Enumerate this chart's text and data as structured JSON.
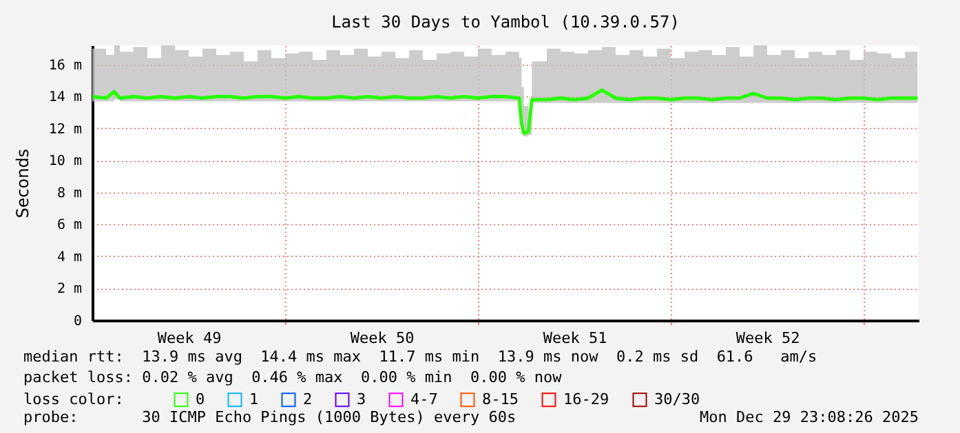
{
  "chart_data": {
    "type": "line",
    "title": "Last 30 Days to Yambol (10.39.0.57)",
    "ylabel": "Seconds",
    "legend_title": "loss color:",
    "legend": "bottom",
    "grid": true,
    "marker": "none",
    "line_style": "solid",
    "xlim": [
      "2025-11-30T00:00",
      "2025-12-30T00:00"
    ],
    "xticks": [
      {
        "value": "2025-12-03T12:00",
        "label": "Week 49"
      },
      {
        "value": "2025-12-10T12:00",
        "label": "Week 50"
      },
      {
        "value": "2025-12-17T12:00",
        "label": "Week 51"
      },
      {
        "value": "2025-12-24T12:00",
        "label": "Week 52"
      },
      {
        "value": "2025-12-07T00:00",
        "label": null
      },
      {
        "value": "2025-12-14T00:00",
        "label": null
      },
      {
        "value": "2025-12-21T00:00",
        "label": null
      },
      {
        "value": "2025-12-28T00:00",
        "label": null
      }
    ],
    "ylim": [
      0,
      17.2
    ],
    "yticks": [
      0,
      {
        "value": 2,
        "label": "2 m"
      },
      {
        "value": 4,
        "label": "4 m"
      },
      {
        "value": 6,
        "label": "6 m"
      },
      {
        "value": 8,
        "label": "8 m"
      },
      {
        "value": 10,
        "label": "10 m"
      },
      {
        "value": 12,
        "label": "12 m"
      },
      {
        "value": 14,
        "label": "14 m"
      },
      {
        "value": 16,
        "label": "16 m"
      }
    ],
    "series": [
      {
        "name": "0",
        "color": "#26ff00",
        "x": [
          "2025-11-30T00:00",
          "2025-11-30T12:00",
          "2025-11-30T19:00",
          "2025-12-01T00:00",
          "2025-12-01T12:00",
          "2025-12-02T00:00",
          "2025-12-02T12:00",
          "2025-12-03T00:00",
          "2025-12-03T12:00",
          "2025-12-04T00:00",
          "2025-12-04T12:00",
          "2025-12-05T00:00",
          "2025-12-05T12:00",
          "2025-12-06T00:00",
          "2025-12-06T12:00",
          "2025-12-07T00:00",
          "2025-12-07T12:00",
          "2025-12-08T00:00",
          "2025-12-08T12:00",
          "2025-12-09T00:00",
          "2025-12-09T12:00",
          "2025-12-10T00:00",
          "2025-12-10T12:00",
          "2025-12-11T00:00",
          "2025-12-11T12:00",
          "2025-12-12T00:00",
          "2025-12-12T12:00",
          "2025-12-13T00:00",
          "2025-12-13T12:00",
          "2025-12-14T00:00",
          "2025-12-14T12:00",
          "2025-12-15T00:00",
          "2025-12-15T12:00",
          "2025-12-15T14:00",
          "2025-12-15T16:00",
          "2025-12-15T20:00",
          "2025-12-15T23:00",
          "2025-12-16T12:00",
          "2025-12-17T00:00",
          "2025-12-17T12:00",
          "2025-12-18T00:00",
          "2025-12-18T12:00",
          "2025-12-19T00:00",
          "2025-12-19T12:00",
          "2025-12-20T00:00",
          "2025-12-20T12:00",
          "2025-12-21T00:00",
          "2025-12-21T12:00",
          "2025-12-22T00:00",
          "2025-12-22T12:00",
          "2025-12-23T00:00",
          "2025-12-23T12:00",
          "2025-12-24T00:00",
          "2025-12-24T12:00",
          "2025-12-25T00:00",
          "2025-12-25T12:00",
          "2025-12-26T00:00",
          "2025-12-26T12:00",
          "2025-12-27T00:00",
          "2025-12-27T12:00",
          "2025-12-28T00:00",
          "2025-12-28T12:00",
          "2025-12-29T00:00",
          "2025-12-29T12:00",
          "2025-12-29T23:00"
        ],
        "values": [
          14.0,
          13.9,
          14.3,
          13.9,
          14.0,
          13.9,
          14.0,
          13.9,
          14.0,
          13.9,
          14.0,
          14.0,
          13.9,
          14.0,
          14.0,
          13.9,
          14.0,
          13.9,
          13.9,
          14.0,
          13.9,
          14.0,
          13.9,
          14.0,
          13.9,
          13.9,
          14.0,
          13.9,
          14.0,
          13.9,
          14.0,
          14.0,
          13.9,
          12.3,
          11.7,
          11.8,
          13.8,
          13.8,
          13.9,
          13.8,
          13.9,
          14.4,
          13.9,
          13.8,
          13.9,
          13.9,
          13.8,
          13.9,
          13.9,
          13.8,
          13.9,
          13.9,
          14.2,
          13.9,
          13.9,
          13.8,
          13.9,
          13.9,
          13.8,
          13.9,
          13.9,
          13.8,
          13.9,
          13.9,
          13.9
        ],
        "lower": [
          13.7,
          13.7,
          13.8,
          13.7,
          13.7,
          13.7,
          13.7,
          13.7,
          13.7,
          13.7,
          13.7,
          13.7,
          13.7,
          13.7,
          13.7,
          13.7,
          13.7,
          13.7,
          13.7,
          13.7,
          13.7,
          13.7,
          13.7,
          13.7,
          13.7,
          13.7,
          13.7,
          13.7,
          13.7,
          13.7,
          13.7,
          13.7,
          13.7,
          12.0,
          11.5,
          11.6,
          13.6,
          13.6,
          13.6,
          13.6,
          13.6,
          13.6,
          13.6,
          13.6,
          13.6,
          13.6,
          13.6,
          13.6,
          13.6,
          13.6,
          13.6,
          13.6,
          13.6,
          13.6,
          13.6,
          13.6,
          13.6,
          13.6,
          13.6,
          13.6,
          13.6,
          13.6,
          13.6,
          13.6,
          13.6
        ],
        "upper": [
          17.0,
          16.6,
          17.2,
          16.8,
          17.1,
          16.4,
          17.2,
          16.9,
          16.5,
          17.0,
          16.6,
          16.8,
          16.2,
          16.9,
          16.4,
          16.7,
          16.8,
          16.3,
          16.9,
          16.6,
          17.0,
          16.5,
          16.8,
          16.4,
          16.9,
          16.3,
          16.7,
          16.8,
          16.5,
          17.0,
          16.6,
          16.8,
          16.4,
          14.6,
          13.4,
          13.0,
          16.2,
          17.0,
          16.8,
          16.7,
          16.9,
          17.1,
          16.6,
          16.9,
          16.5,
          17.0,
          16.4,
          16.8,
          16.9,
          16.6,
          17.1,
          16.5,
          17.2,
          16.6,
          16.9,
          16.4,
          16.8,
          16.6,
          16.9,
          16.3,
          16.8,
          16.7,
          16.4,
          16.8,
          16.5
        ]
      },
      {
        "name": "1",
        "color": "#00b8ff"
      },
      {
        "name": "2",
        "color": "#0059ff"
      },
      {
        "name": "3",
        "color": "#5e00ff"
      },
      {
        "name": "4-7",
        "color": "#ff00ff"
      },
      {
        "name": "8-15",
        "color": "#ff5500"
      },
      {
        "name": "16-29",
        "color": "#ff0000"
      },
      {
        "name": "30/30",
        "color": "#a10000"
      }
    ],
    "annotations": [
      "median rtt:  13.9 ms avg  14.4 ms max  11.7 ms min  13.9 ms now  0.2 ms sd  61.6   am/s",
      "packet loss: 0.02 % avg  0.46 % max  0.00 % min  0.00 % now",
      "probe:       30 ICMP Echo Pings (1000 Bytes) every 60s",
      "Mon Dec 29 23:08:26 2025"
    ]
  }
}
